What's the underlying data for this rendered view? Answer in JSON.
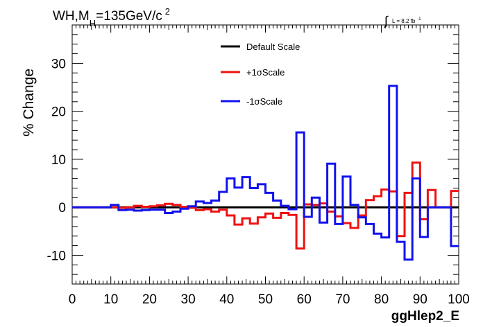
{
  "chart_data": {
    "type": "line",
    "title_main": "WH,M",
    "title_sub": "H",
    "title_rest": "=135GeV/c",
    "title_sup": "2",
    "lumi_symbol": "∫",
    "lumi_text": "L = 8.2 fb",
    "lumi_sup": "-1",
    "ylabel": "% Change",
    "xlabel": "ggHlep2_E",
    "xlim": [
      0,
      100
    ],
    "ylim": [
      -16,
      38
    ],
    "xticks": [
      "0",
      "10",
      "20",
      "30",
      "40",
      "50",
      "60",
      "70",
      "80",
      "90",
      "100"
    ],
    "yticks": [
      "-10",
      "0",
      "10",
      "20",
      "30"
    ],
    "ytick_values": [
      -10,
      0,
      10,
      20,
      30
    ],
    "bin_edges": [
      0,
      2,
      4,
      6,
      8,
      10,
      12,
      14,
      16,
      18,
      20,
      22,
      24,
      26,
      28,
      30,
      32,
      34,
      36,
      38,
      40,
      42,
      44,
      46,
      48,
      50,
      52,
      54,
      56,
      58,
      60,
      62,
      64,
      66,
      68,
      70,
      72,
      74,
      76,
      78,
      80,
      82,
      84,
      86,
      88,
      90,
      92,
      94,
      96,
      98,
      100
    ],
    "legend_position": "top-center",
    "series": [
      {
        "name": "Default Scale",
        "color": "#000000",
        "values": [
          0,
          0,
          0,
          0,
          0,
          0,
          0,
          0,
          0,
          0,
          0,
          0,
          0,
          0,
          0,
          0,
          0,
          0,
          0,
          0,
          0,
          0,
          0,
          0,
          0,
          0,
          0,
          0,
          0,
          0,
          0,
          0,
          0,
          0,
          0,
          0,
          0,
          0,
          0,
          0,
          0,
          0,
          0,
          0,
          0,
          0,
          0,
          0,
          0,
          0
        ]
      },
      {
        "name": "+1σScale",
        "color": "#ee1111",
        "values": [
          0,
          0,
          0,
          0,
          0,
          0,
          -0.1,
          0,
          0.3,
          0.1,
          0.2,
          0.4,
          0.7,
          0.5,
          0.1,
          -0.1,
          -0.6,
          -0.4,
          -0.9,
          -0.5,
          -1.7,
          -3.6,
          -2.3,
          -3.4,
          -2.1,
          -1.3,
          -2.2,
          -1.2,
          -1.6,
          -8.6,
          0.6,
          0.5,
          0.8,
          -0.9,
          -1.9,
          -3.3,
          -4.3,
          -1.7,
          1.5,
          2.3,
          3.7,
          3.3,
          -6.0,
          3.0,
          9.3,
          -2.5,
          3.6,
          0,
          0,
          3.4
        ]
      },
      {
        "name": "-1σScale",
        "color": "#1111ee",
        "values": [
          0,
          0,
          0,
          0,
          0,
          0.5,
          -0.6,
          -0.5,
          -0.7,
          -0.6,
          -0.5,
          -0.5,
          -1.2,
          -0.9,
          -0.3,
          0.2,
          1.2,
          0.9,
          1.4,
          3.2,
          6.0,
          4.1,
          6.3,
          4.0,
          4.8,
          3.0,
          1.4,
          0.3,
          -0.4,
          15.6,
          -2.0,
          2.0,
          -3.2,
          9.1,
          -3.5,
          6.4,
          0.5,
          -2.1,
          -3.5,
          -5.5,
          -6.3,
          25.3,
          -7.2,
          -10.9,
          6.0,
          -6.2,
          0,
          0,
          0,
          -8.1
        ]
      }
    ]
  }
}
